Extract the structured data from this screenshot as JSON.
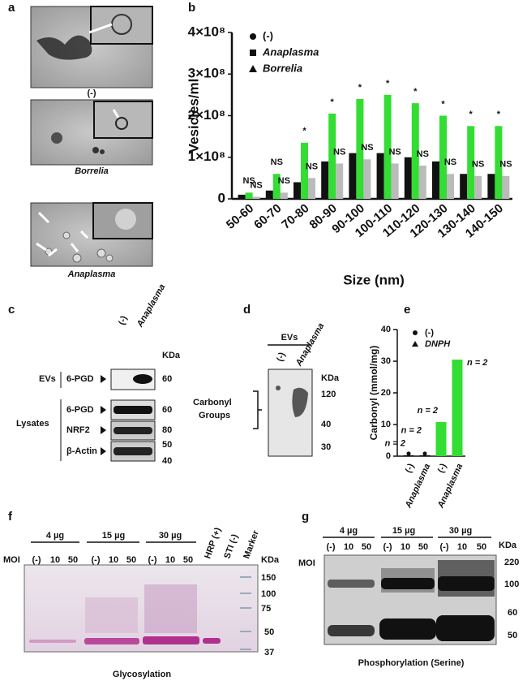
{
  "panel_labels": [
    "a",
    "b",
    "c",
    "d",
    "e",
    "f",
    "g"
  ],
  "panel_a": {
    "captions": [
      "(-)",
      "Borrelia",
      "Anaplasma"
    ]
  },
  "chart_data": [
    {
      "type": "bar",
      "ylabel": "Vesicles/ml",
      "xlabel": "Size (nm)",
      "categories": [
        "50-60",
        "60-70",
        "70-80",
        "80-90",
        "90-100",
        "100-110",
        "110-120",
        "120-130",
        "130-140",
        "140-150"
      ],
      "series": [
        {
          "name": "(-)",
          "marker": "circle",
          "color": "#111111",
          "values": [
            10000000,
            20000000,
            40000000,
            90000000,
            110000000,
            110000000,
            100000000,
            90000000,
            60000000,
            60000000
          ]
        },
        {
          "name": "Anaplasma",
          "marker": "square",
          "color": "#33dd33",
          "values": [
            15000000,
            60000000,
            135000000,
            205000000,
            240000000,
            250000000,
            230000000,
            200000000,
            175000000,
            175000000
          ],
          "significance": [
            "NS",
            "NS",
            "*",
            "*",
            "*",
            "*",
            "*",
            "*",
            "*",
            "*"
          ]
        },
        {
          "name": "Borrelia",
          "marker": "triangle",
          "color": "#bbbbbb",
          "values": [
            5000000,
            15000000,
            50000000,
            85000000,
            95000000,
            85000000,
            80000000,
            60000000,
            55000000,
            55000000
          ],
          "significance": [
            "NS",
            "NS",
            "NS",
            "NS",
            "NS",
            "NS",
            "NS",
            "NS",
            "NS",
            "NS"
          ]
        }
      ],
      "ylim": [
        0,
        400000000
      ],
      "yticks": [
        0,
        {
          "value": 100000000,
          "label": "1×10⁸"
        },
        {
          "value": 200000000,
          "label": "2×10⁸"
        },
        {
          "value": 300000000,
          "label": "3×10⁸"
        },
        {
          "value": 400000000,
          "label": "4×10⁸"
        }
      ]
    },
    {
      "type": "bar",
      "ylabel": "Carbonyl (mmol/mg)",
      "categories": [
        "(-)",
        "Anaplasma",
        "(-)",
        "Anaplasma"
      ],
      "series": [
        {
          "name": "(-)",
          "marker": "circle",
          "color": "#111111",
          "values": [
            0.3,
            0.3,
            null,
            null
          ]
        },
        {
          "name": "DNPH",
          "marker": "triangle",
          "color": "#33dd33",
          "values": [
            null,
            null,
            10.8,
            30.5
          ]
        }
      ],
      "annotations": [
        "n = 2",
        "n = 2",
        "n = 2",
        "n = 2"
      ],
      "ylim": [
        0,
        40
      ],
      "yticks": [
        0,
        10,
        20,
        30,
        40
      ]
    }
  ],
  "panel_c": {
    "lanes": [
      "(-)",
      "Anaplasma"
    ],
    "unit": "KDa",
    "ev_group": "EVs",
    "lysate_group": "Lysates",
    "rows": [
      {
        "label": "6-PGD",
        "markers": [
          60
        ]
      },
      {
        "label": "6-PGD",
        "markers": [
          60
        ]
      },
      {
        "label": "NRF2",
        "markers": [
          80
        ]
      },
      {
        "label": "β-Actin",
        "markers": [
          50,
          40
        ]
      }
    ]
  },
  "panel_d": {
    "group": "EVs",
    "lanes": [
      "(-)",
      "Anaplasma"
    ],
    "unit": "KDa",
    "markers": [
      120,
      40,
      30
    ],
    "band_label": [
      "Carbonyl",
      "Groups"
    ]
  },
  "panel_f": {
    "doses": [
      "4 µg",
      "15 µg",
      "30 µg"
    ],
    "moi_label": "MOI",
    "moi": [
      "(-)",
      "10",
      "50"
    ],
    "controls": [
      "HRP (+)",
      "STI (-)",
      "Marker"
    ],
    "unit": "KDa",
    "markers": [
      150,
      100,
      75,
      50,
      37
    ],
    "caption": "Glycosylation"
  },
  "panel_g": {
    "doses": [
      "4 µg",
      "15 µg",
      "30 µg"
    ],
    "moi_label": "MOI",
    "moi": [
      "(-)",
      "10",
      "50"
    ],
    "unit": "KDa",
    "markers": [
      220,
      100,
      60,
      50
    ],
    "caption": "Phosphorylation (Serine)"
  }
}
